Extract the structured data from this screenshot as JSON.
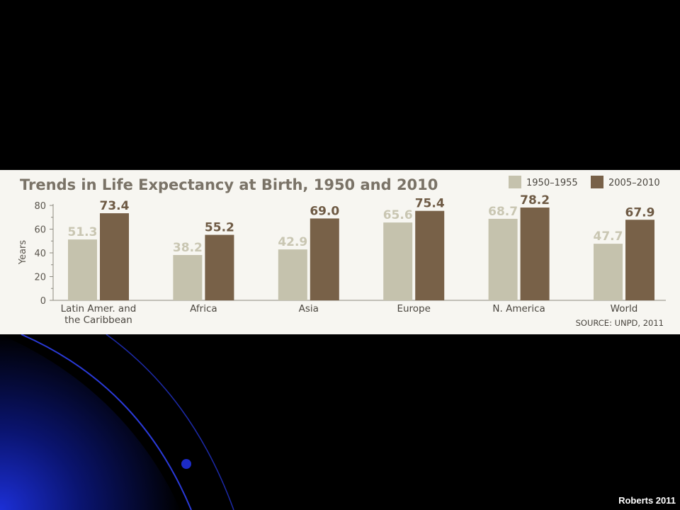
{
  "slide": {
    "credit": "Roberts 2011"
  },
  "chart_data": {
    "type": "bar",
    "title": "Trends in Life Expectancy at Birth, 1950 and 2010",
    "ylabel": "Years",
    "xlabel": "",
    "ylim": [
      0,
      80
    ],
    "yticks": [
      0,
      20,
      40,
      60,
      80
    ],
    "grid": false,
    "legend_position": "top-right",
    "categories": [
      [
        "Latin Amer. and",
        "the Caribbean"
      ],
      [
        "Africa"
      ],
      [
        "Asia"
      ],
      [
        "Europe"
      ],
      [
        "N. America"
      ],
      [
        "World"
      ]
    ],
    "series": [
      {
        "name": "1950–1955",
        "color": "#c5c2ad",
        "label_color": "#c9c6b2",
        "values": [
          51.3,
          38.2,
          42.9,
          65.6,
          68.7,
          47.7
        ]
      },
      {
        "name": "2005–2010",
        "color": "#786148",
        "label_color": "#6e5a44",
        "values": [
          73.4,
          55.2,
          69.0,
          75.4,
          78.2,
          67.9
        ]
      }
    ],
    "source": "SOURCE: UNPD, 2011"
  }
}
